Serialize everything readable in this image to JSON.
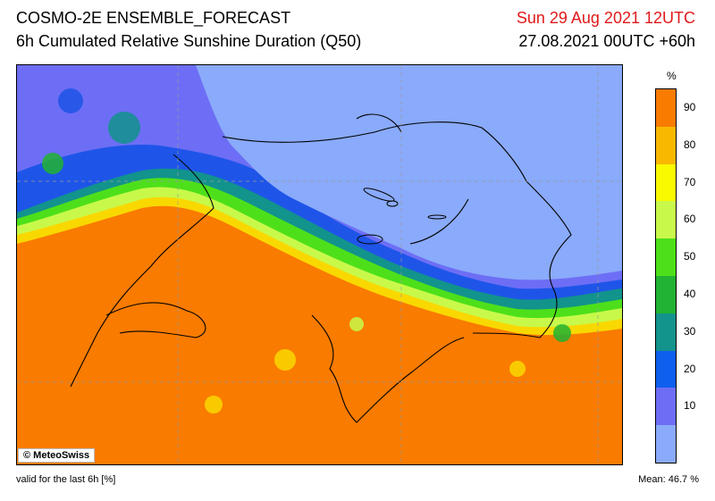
{
  "header": {
    "title": "COSMO-2E ENSEMBLE_FORECAST",
    "subtitle": "6h Cumulated Relative Sunshine Duration (Q50)",
    "valid_time": "Sun 29 Aug 2021 12UTC",
    "run_time": "27.08.2021 00UTC +60h"
  },
  "legend": {
    "unit": "%",
    "labels": [
      "90",
      "80",
      "70",
      "60",
      "50",
      "40",
      "30",
      "20",
      "10"
    ],
    "colors": [
      "#f97b00",
      "#f9b800",
      "#f9f900",
      "#c8f94a",
      "#4de01a",
      "#21b333",
      "#12938c",
      "#0f5fee",
      "#6d6ef5",
      "#8aaafb"
    ]
  },
  "map": {
    "credit": "© MeteoSwiss"
  },
  "footer": {
    "left": "valid for the last 6h [%]",
    "right": "Mean:  46.7 %"
  }
}
